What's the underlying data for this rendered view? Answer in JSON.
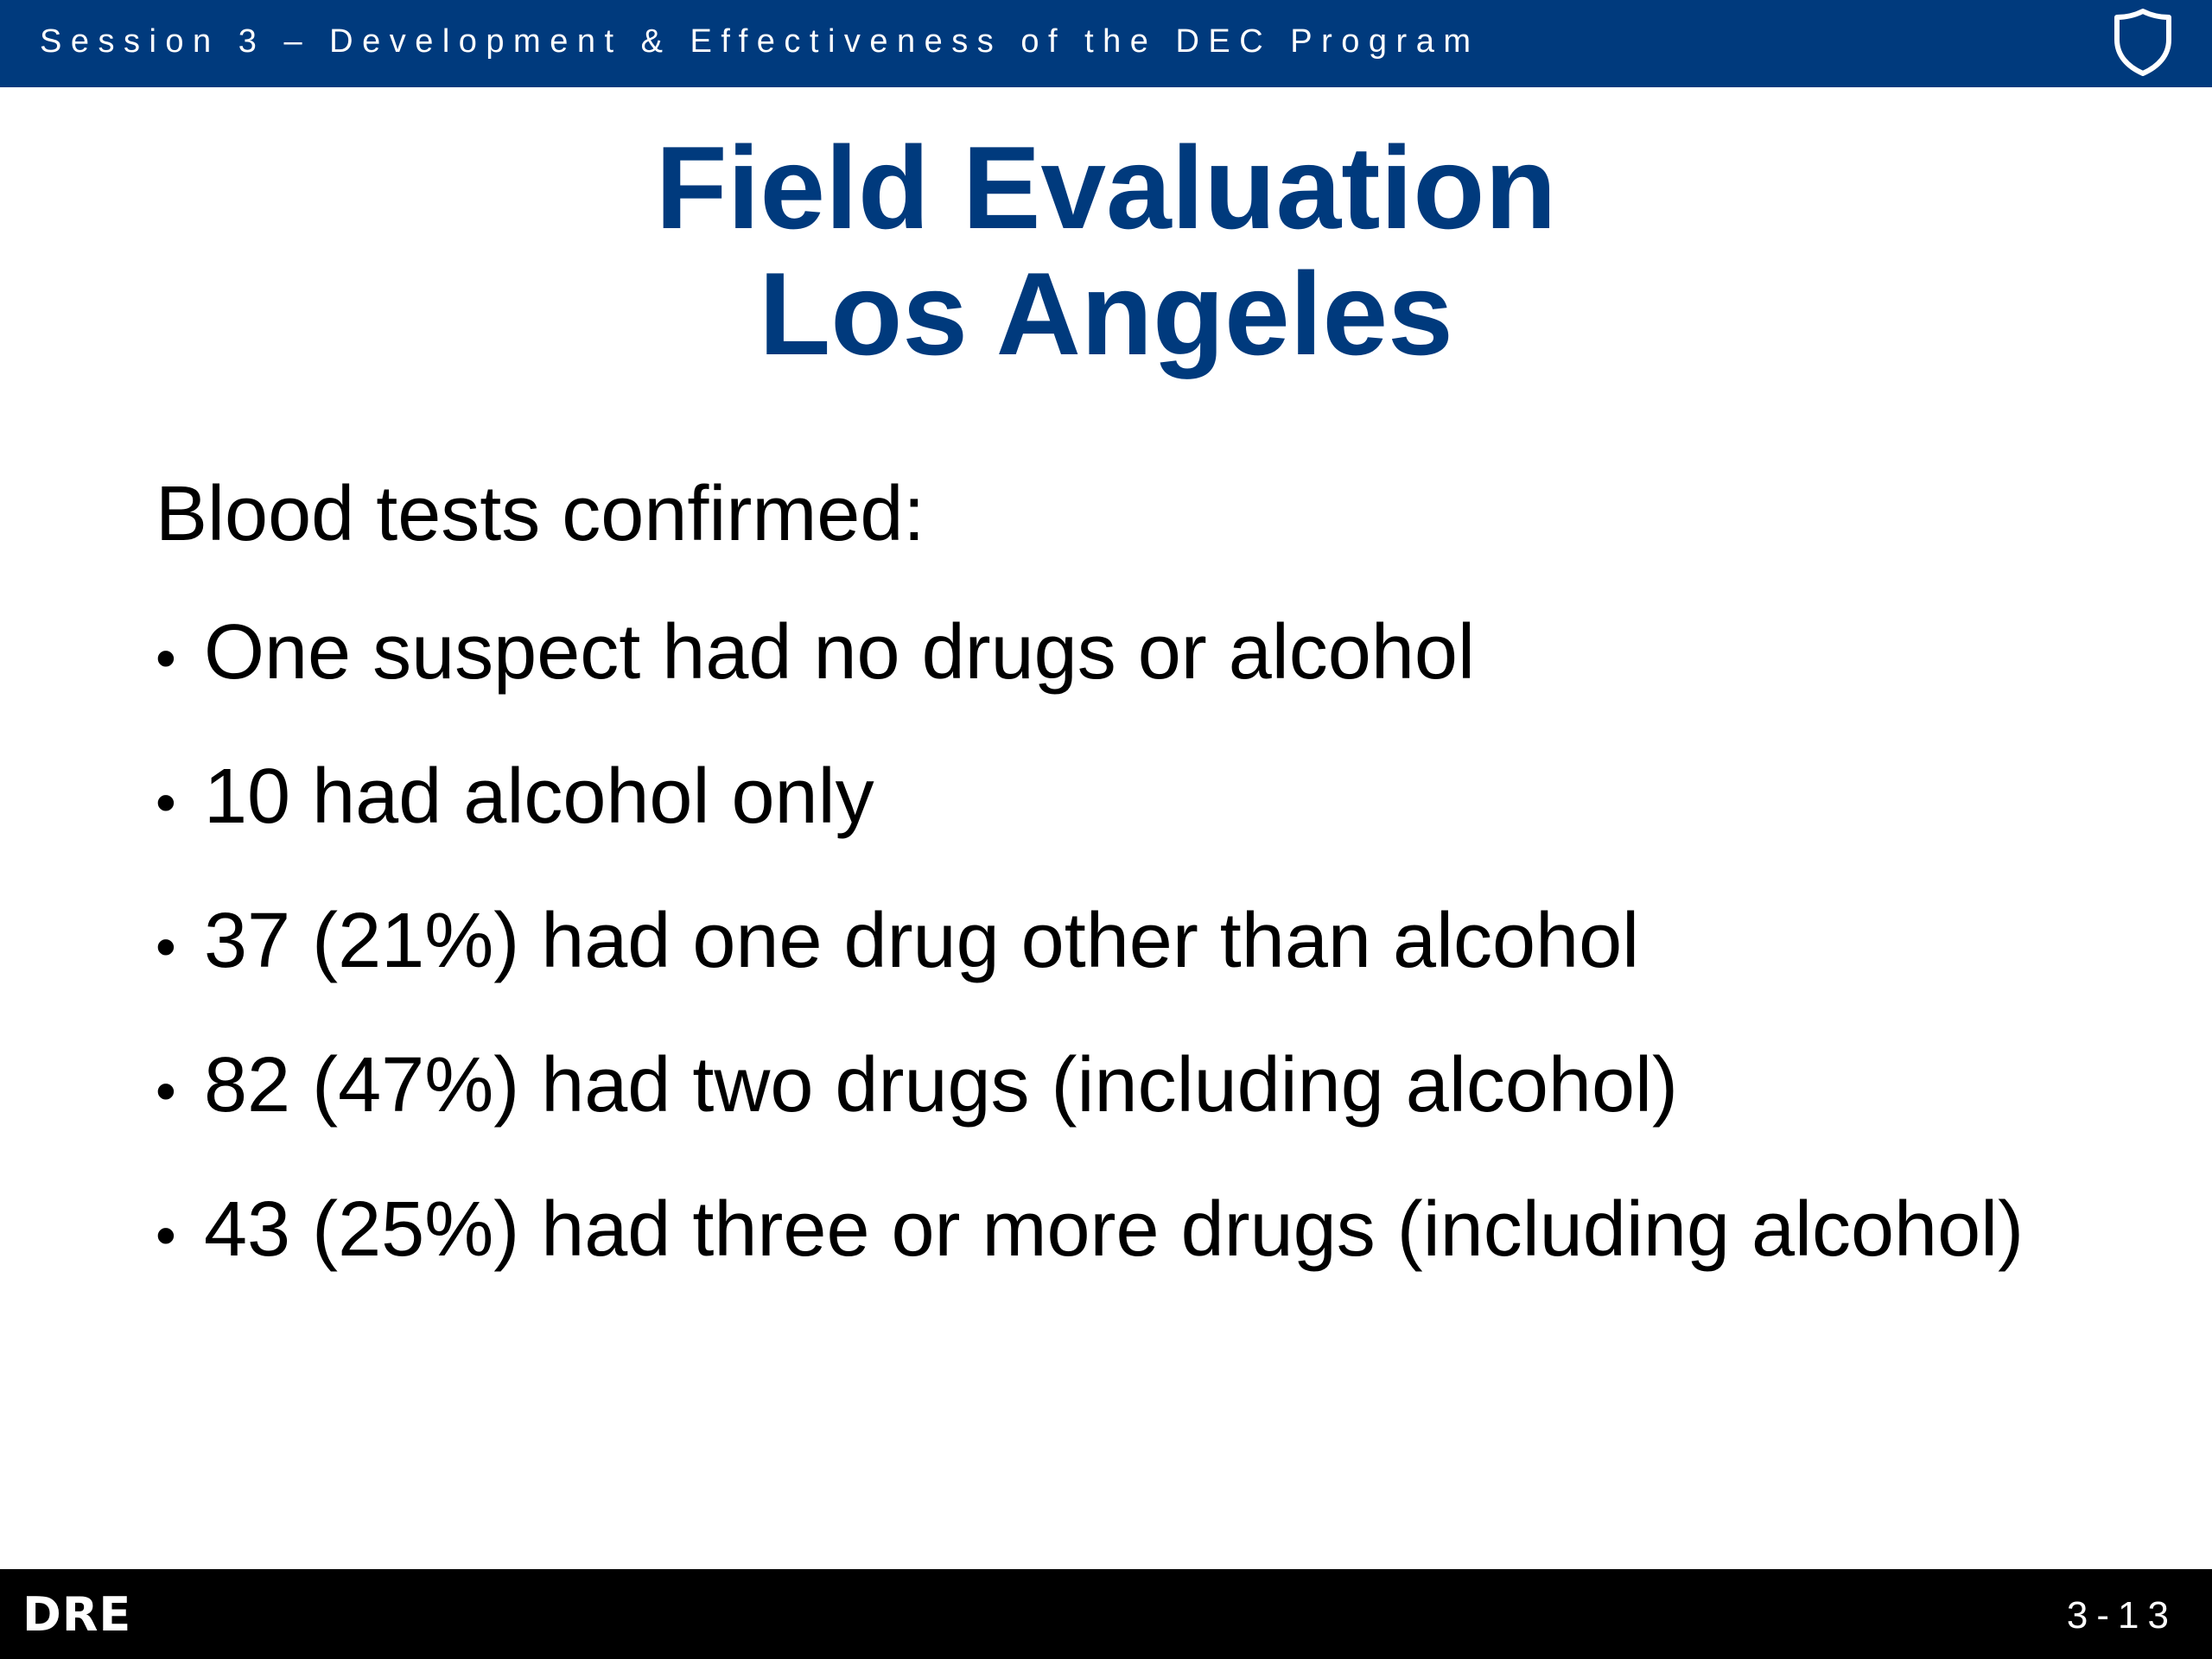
{
  "header": {
    "session_title": "Session 3 – Development & Effectiveness of the DEC Program",
    "logo_icon": "shield-icon"
  },
  "slide": {
    "title_line1": "Field Evaluation",
    "title_line2": "Los Angeles",
    "intro": "Blood tests confirmed:",
    "bullets": [
      "One suspect had no drugs or alcohol",
      "10 had alcohol only",
      "37 (21%) had one drug other than alcohol",
      "82 (47%) had two drugs (including alcohol)",
      "43 (25%) had three or more drugs (including alcohol)"
    ]
  },
  "footer": {
    "logo_text": "DRE",
    "page_number": "3-13"
  },
  "colors": {
    "header_background": "#003a7d",
    "title_color": "#003a7d",
    "footer_background": "#000000",
    "text_color": "#000000"
  }
}
